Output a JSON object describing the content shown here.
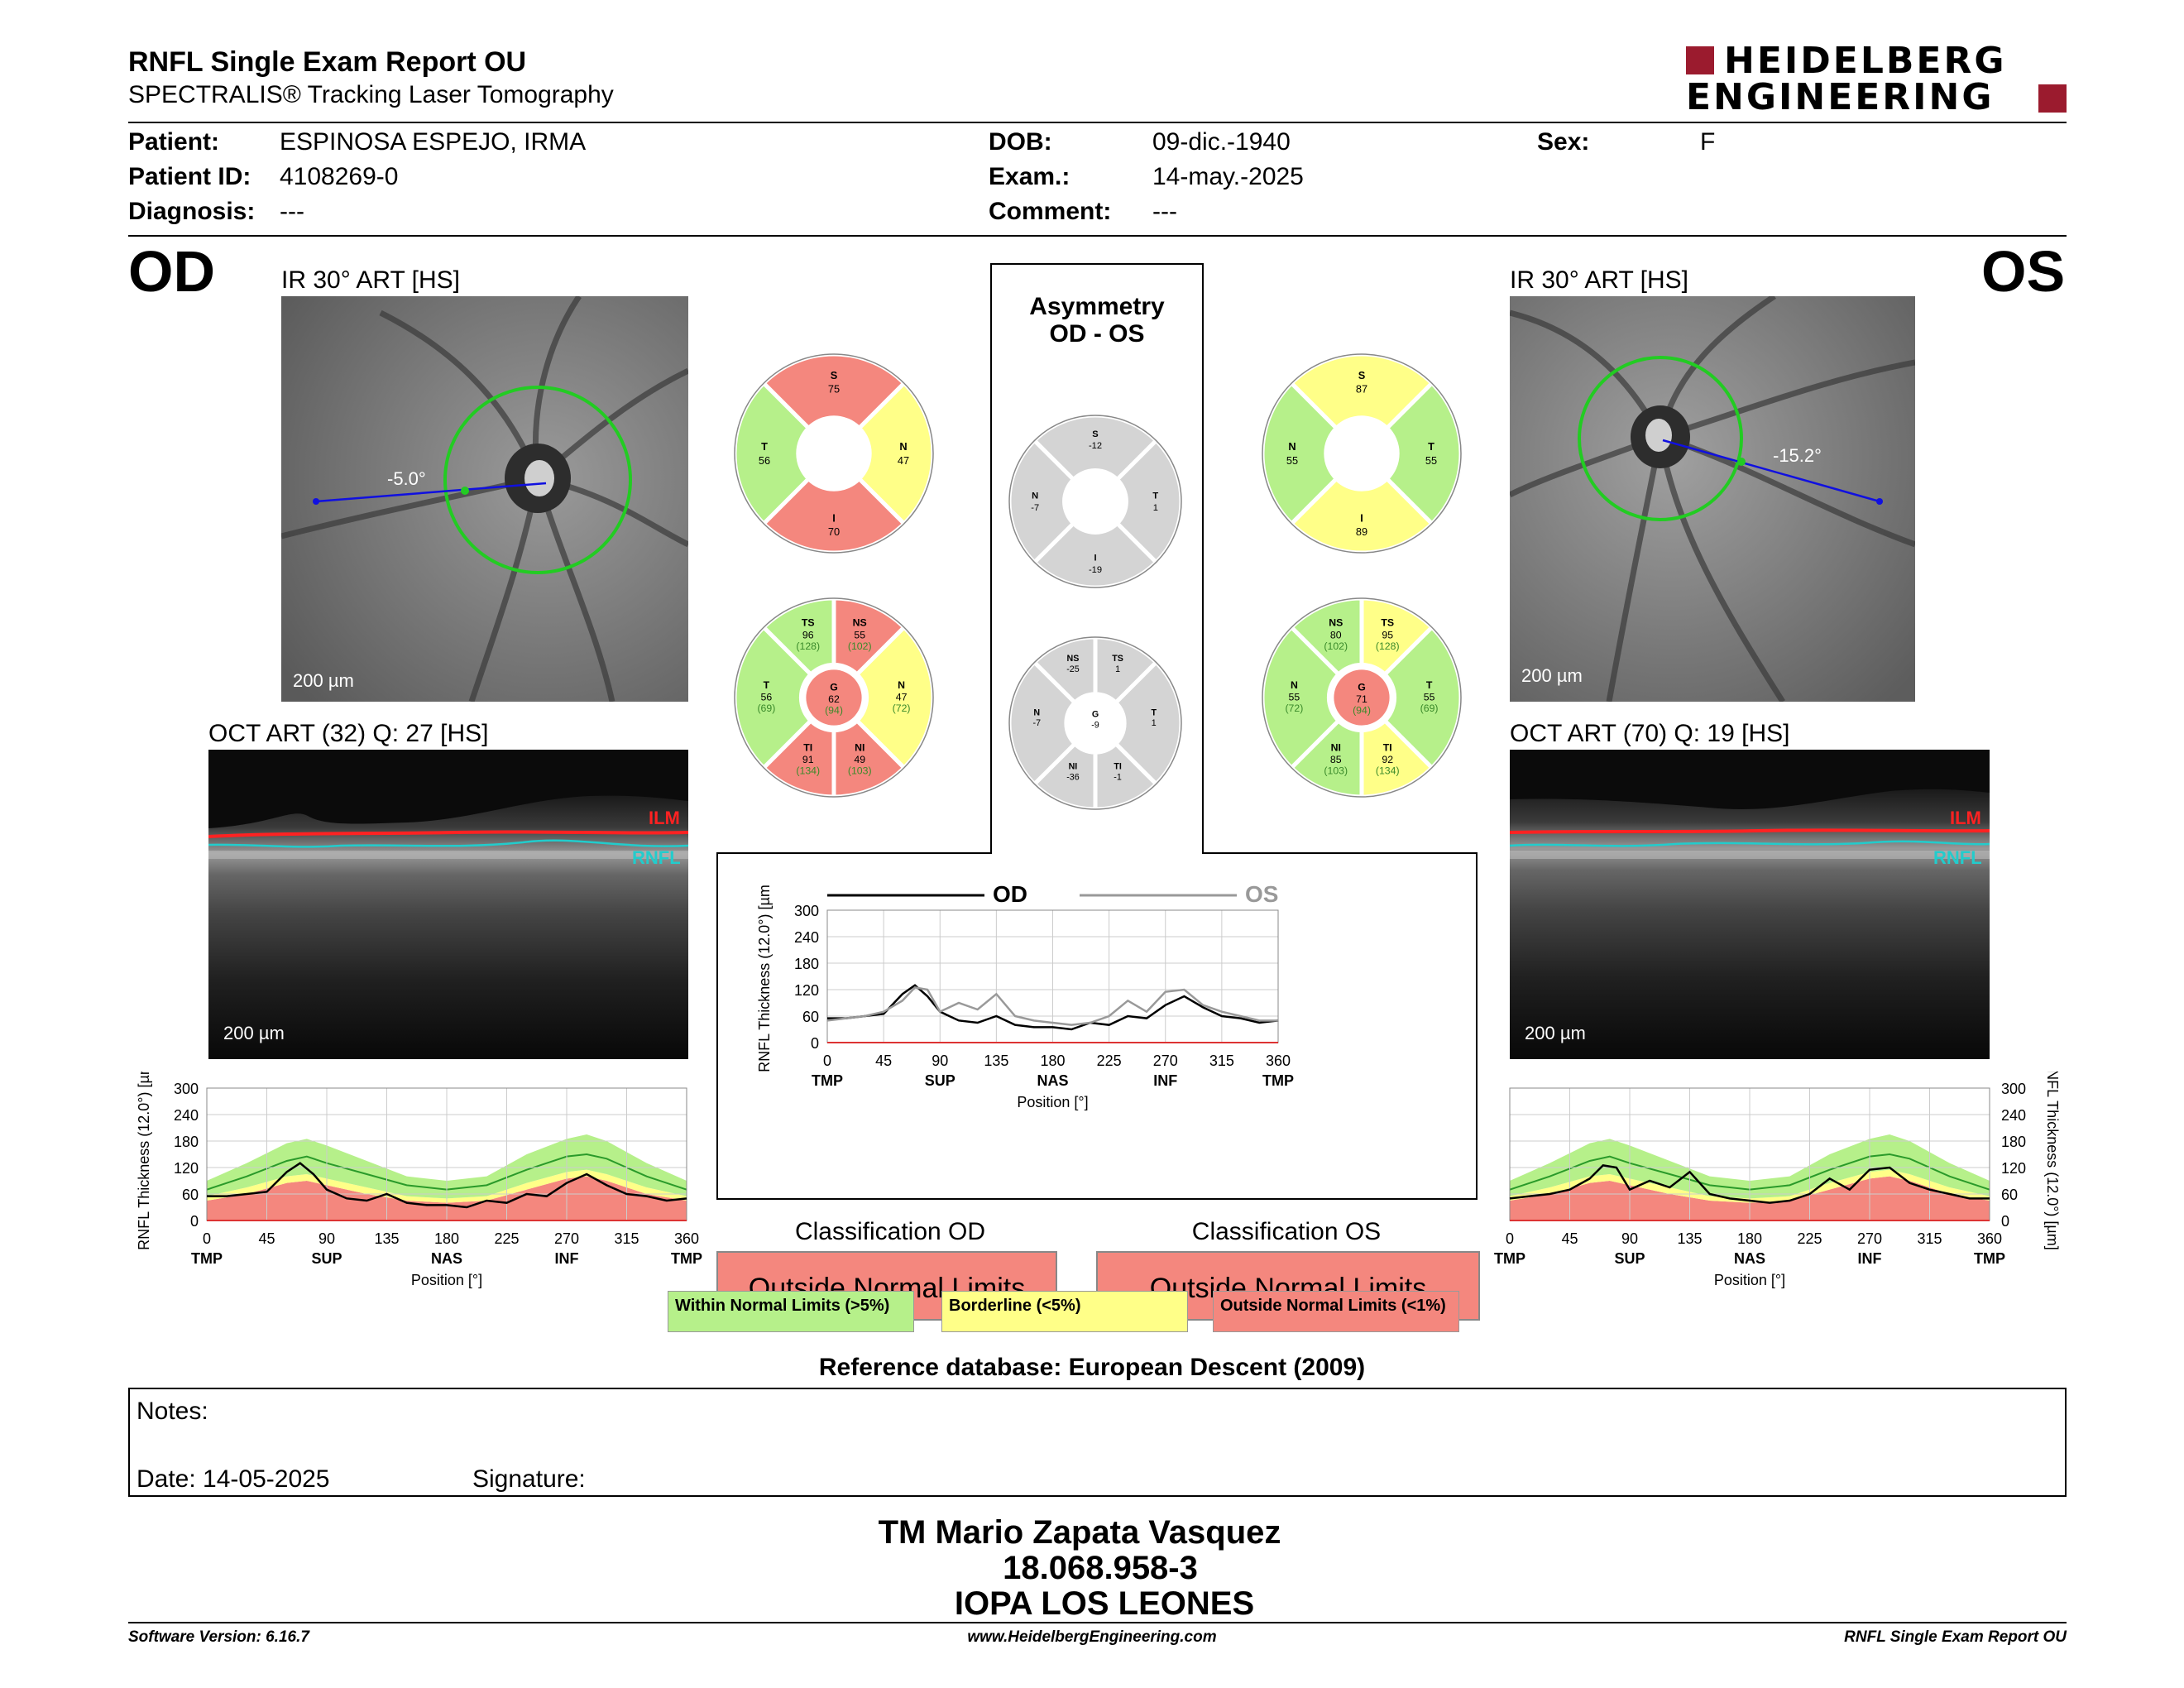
{
  "header": {
    "title": "RNFL Single Exam Report OU",
    "subtitle": "SPECTRALIS® Tracking Laser Tomography",
    "logo_line1": "HEIDELBERG",
    "logo_line2": "ENGINEERING",
    "logo_color": "#9b1b2e"
  },
  "patient": {
    "patient_label": "Patient:",
    "patient_value": "ESPINOSA ESPEJO, IRMA",
    "id_label": "Patient ID:",
    "id_value": "4108269-0",
    "diagnosis_label": "Diagnosis:",
    "diagnosis_value": "---",
    "dob_label": "DOB:",
    "dob_value": "09-dic.-1940",
    "exam_label": "Exam.:",
    "exam_value": "14-may.-2025",
    "comment_label": "Comment:",
    "comment_value": "---",
    "sex_label": "Sex:",
    "sex_value": "F"
  },
  "od": {
    "eye": "OD",
    "ir_label": "IR 30° ART [HS]",
    "angle": "-5.0°",
    "ir_scale": "200 µm",
    "oct_label": "OCT ART (32) Q: 27 [HS]",
    "oct_scale": "200 µm",
    "ilm": "ILM",
    "rnfl": "RNFL",
    "sectors4": {
      "S": "75",
      "N": "47",
      "I": "70",
      "T": "56"
    },
    "sectors6": {
      "TS": {
        "v": "96",
        "n": "(128)"
      },
      "NS": {
        "v": "55",
        "n": "(102)"
      },
      "T": {
        "v": "56",
        "n": "(69)"
      },
      "G": {
        "v": "62",
        "n": "(94)"
      },
      "N": {
        "v": "47",
        "n": "(72)"
      },
      "TI": {
        "v": "91",
        "n": "(134)"
      },
      "NI": {
        "v": "49",
        "n": "(103)"
      }
    },
    "classification_title": "Classification OD",
    "classification": "Outside Normal Limits"
  },
  "os": {
    "eye": "OS",
    "ir_label": "IR 30° ART [HS]",
    "angle": "-15.2°",
    "ir_scale": "200 µm",
    "oct_label": "OCT ART (70) Q: 19 [HS]",
    "oct_scale": "200 µm",
    "ilm": "ILM",
    "rnfl": "RNFL",
    "sectors4": {
      "S": "87",
      "N": "55",
      "I": "89",
      "T": "55"
    },
    "sectors6": {
      "NS": {
        "v": "80",
        "n": "(102)"
      },
      "TS": {
        "v": "95",
        "n": "(128)"
      },
      "N": {
        "v": "55",
        "n": "(72)"
      },
      "G": {
        "v": "71",
        "n": "(94)"
      },
      "T": {
        "v": "55",
        "n": "(69)"
      },
      "NI": {
        "v": "85",
        "n": "(103)"
      },
      "TI": {
        "v": "92",
        "n": "(134)"
      }
    },
    "classification_title": "Classification OS",
    "classification": "Outside Normal Limits"
  },
  "asymmetry": {
    "title1": "Asymmetry",
    "title2": "OD - OS",
    "sectors4": {
      "S": "-12",
      "N": "-7",
      "T": "1",
      "I": "-19"
    },
    "sectors6": {
      "NS": "-25",
      "TS": "1",
      "N": "-7",
      "G": "-9",
      "T": "1",
      "NI": "-36",
      "TI": "-1"
    }
  },
  "legend": {
    "within": "Within Normal Limits (>5%)",
    "borderline": "Borderline (<5%)",
    "outside": "Outside Normal Limits (<1%)",
    "colors": {
      "within": "#b6f08a",
      "borderline": "#ffff88",
      "outside": "#f4877e",
      "grey": "#d4d4d4"
    }
  },
  "chart_data": [
    {
      "type": "line",
      "title": "",
      "ylabel": "RNFL Thickness (12.0°) [µm]",
      "xlabel": "Position [°]",
      "ylim": [
        0,
        300
      ],
      "xlim": [
        0,
        360
      ],
      "yticks": [
        "0",
        "60",
        "120",
        "180",
        "240",
        "300"
      ],
      "xticks": [
        "0",
        "45",
        "90",
        "135",
        "180",
        "225",
        "270",
        "315",
        "360"
      ],
      "region_labels": [
        "TMP",
        "SUP",
        "NAS",
        "INF",
        "TMP"
      ],
      "series": [
        {
          "name": "OD",
          "x": [
            0,
            15,
            30,
            45,
            60,
            70,
            80,
            90,
            105,
            120,
            135,
            150,
            165,
            180,
            195,
            210,
            225,
            240,
            255,
            270,
            285,
            300,
            315,
            330,
            345,
            360
          ],
          "values": [
            55,
            55,
            60,
            65,
            110,
            130,
            105,
            70,
            50,
            45,
            60,
            40,
            35,
            35,
            30,
            45,
            40,
            60,
            55,
            85,
            105,
            80,
            60,
            55,
            45,
            50
          ]
        },
        {
          "name": "OS",
          "x": [
            0,
            15,
            30,
            45,
            60,
            70,
            80,
            90,
            105,
            120,
            135,
            150,
            165,
            180,
            195,
            210,
            225,
            240,
            255,
            270,
            285,
            300,
            315,
            330,
            345,
            360
          ],
          "values": [
            50,
            55,
            60,
            70,
            95,
            125,
            120,
            70,
            90,
            75,
            110,
            60,
            50,
            45,
            40,
            45,
            60,
            95,
            70,
            115,
            120,
            85,
            70,
            60,
            50,
            50
          ]
        }
      ],
      "legend": "top"
    },
    {
      "type": "line",
      "title": "",
      "ylabel": "RNFL Thickness (12.0°) [µm]",
      "xlabel": "Position [°]",
      "ylim": [
        0,
        300
      ],
      "xlim": [
        0,
        360
      ],
      "yticks": [
        "0",
        "60",
        "120",
        "180",
        "240",
        "300"
      ],
      "xticks": [
        "0",
        "45",
        "90",
        "135",
        "180",
        "225",
        "270",
        "315",
        "360"
      ],
      "region_labels": [
        "TMP",
        "SUP",
        "NAS",
        "INF",
        "TMP"
      ],
      "series": [
        {
          "name": "OD",
          "x": [
            0,
            15,
            30,
            45,
            60,
            70,
            80,
            90,
            105,
            120,
            135,
            150,
            165,
            180,
            195,
            210,
            225,
            240,
            255,
            270,
            285,
            300,
            315,
            330,
            345,
            360
          ],
          "values": [
            55,
            55,
            60,
            65,
            110,
            130,
            105,
            70,
            50,
            45,
            60,
            40,
            35,
            35,
            30,
            45,
            40,
            60,
            55,
            85,
            105,
            80,
            60,
            55,
            45,
            50
          ]
        }
      ]
    },
    {
      "type": "line",
      "title": "",
      "ylabel": "RNFL Thickness (12.0°) [µm]",
      "xlabel": "Position [°]",
      "ylim": [
        0,
        300
      ],
      "xlim": [
        0,
        360
      ],
      "yticks": [
        "0",
        "60",
        "120",
        "180",
        "240",
        "300"
      ],
      "xticks": [
        "0",
        "45",
        "90",
        "135",
        "180",
        "225",
        "270",
        "315",
        "360"
      ],
      "region_labels": [
        "TMP",
        "SUP",
        "NAS",
        "INF",
        "TMP"
      ],
      "series": [
        {
          "name": "OS",
          "x": [
            0,
            15,
            30,
            45,
            60,
            70,
            80,
            90,
            105,
            120,
            135,
            150,
            165,
            180,
            195,
            210,
            225,
            240,
            255,
            270,
            285,
            300,
            315,
            330,
            345,
            360
          ],
          "values": [
            50,
            55,
            60,
            70,
            95,
            125,
            120,
            70,
            90,
            75,
            110,
            60,
            50,
            45,
            40,
            45,
            60,
            95,
            70,
            115,
            120,
            85,
            70,
            60,
            50,
            50
          ]
        }
      ]
    }
  ],
  "normative": {
    "x": [
      0,
      30,
      60,
      75,
      90,
      120,
      150,
      180,
      210,
      240,
      270,
      285,
      300,
      330,
      360
    ],
    "p99": [
      45,
      60,
      85,
      90,
      80,
      60,
      45,
      40,
      45,
      70,
      95,
      100,
      90,
      60,
      45
    ],
    "p95": [
      55,
      75,
      100,
      105,
      95,
      75,
      55,
      50,
      55,
      85,
      110,
      115,
      105,
      75,
      55
    ],
    "mean": [
      70,
      100,
      135,
      145,
      130,
      105,
      80,
      70,
      80,
      115,
      145,
      150,
      140,
      100,
      70
    ],
    "p95hi": [
      90,
      130,
      175,
      185,
      170,
      135,
      100,
      90,
      100,
      150,
      185,
      195,
      180,
      130,
      90
    ]
  },
  "footer_ref": "Reference database: European Descent (2009)",
  "notes": {
    "notes_label": "Notes:",
    "date_label": "Date: 14-05-2025",
    "signature_label": "Signature:"
  },
  "signature": {
    "name": "TM Mario Zapata Vasquez",
    "rut": "18.068.958-3",
    "clinic": "IOPA LOS LEONES"
  },
  "footer": {
    "version": "Software Version: 6.16.7",
    "url": "www.HeidelbergEngineering.com",
    "report": "RNFL Single Exam Report OU"
  }
}
